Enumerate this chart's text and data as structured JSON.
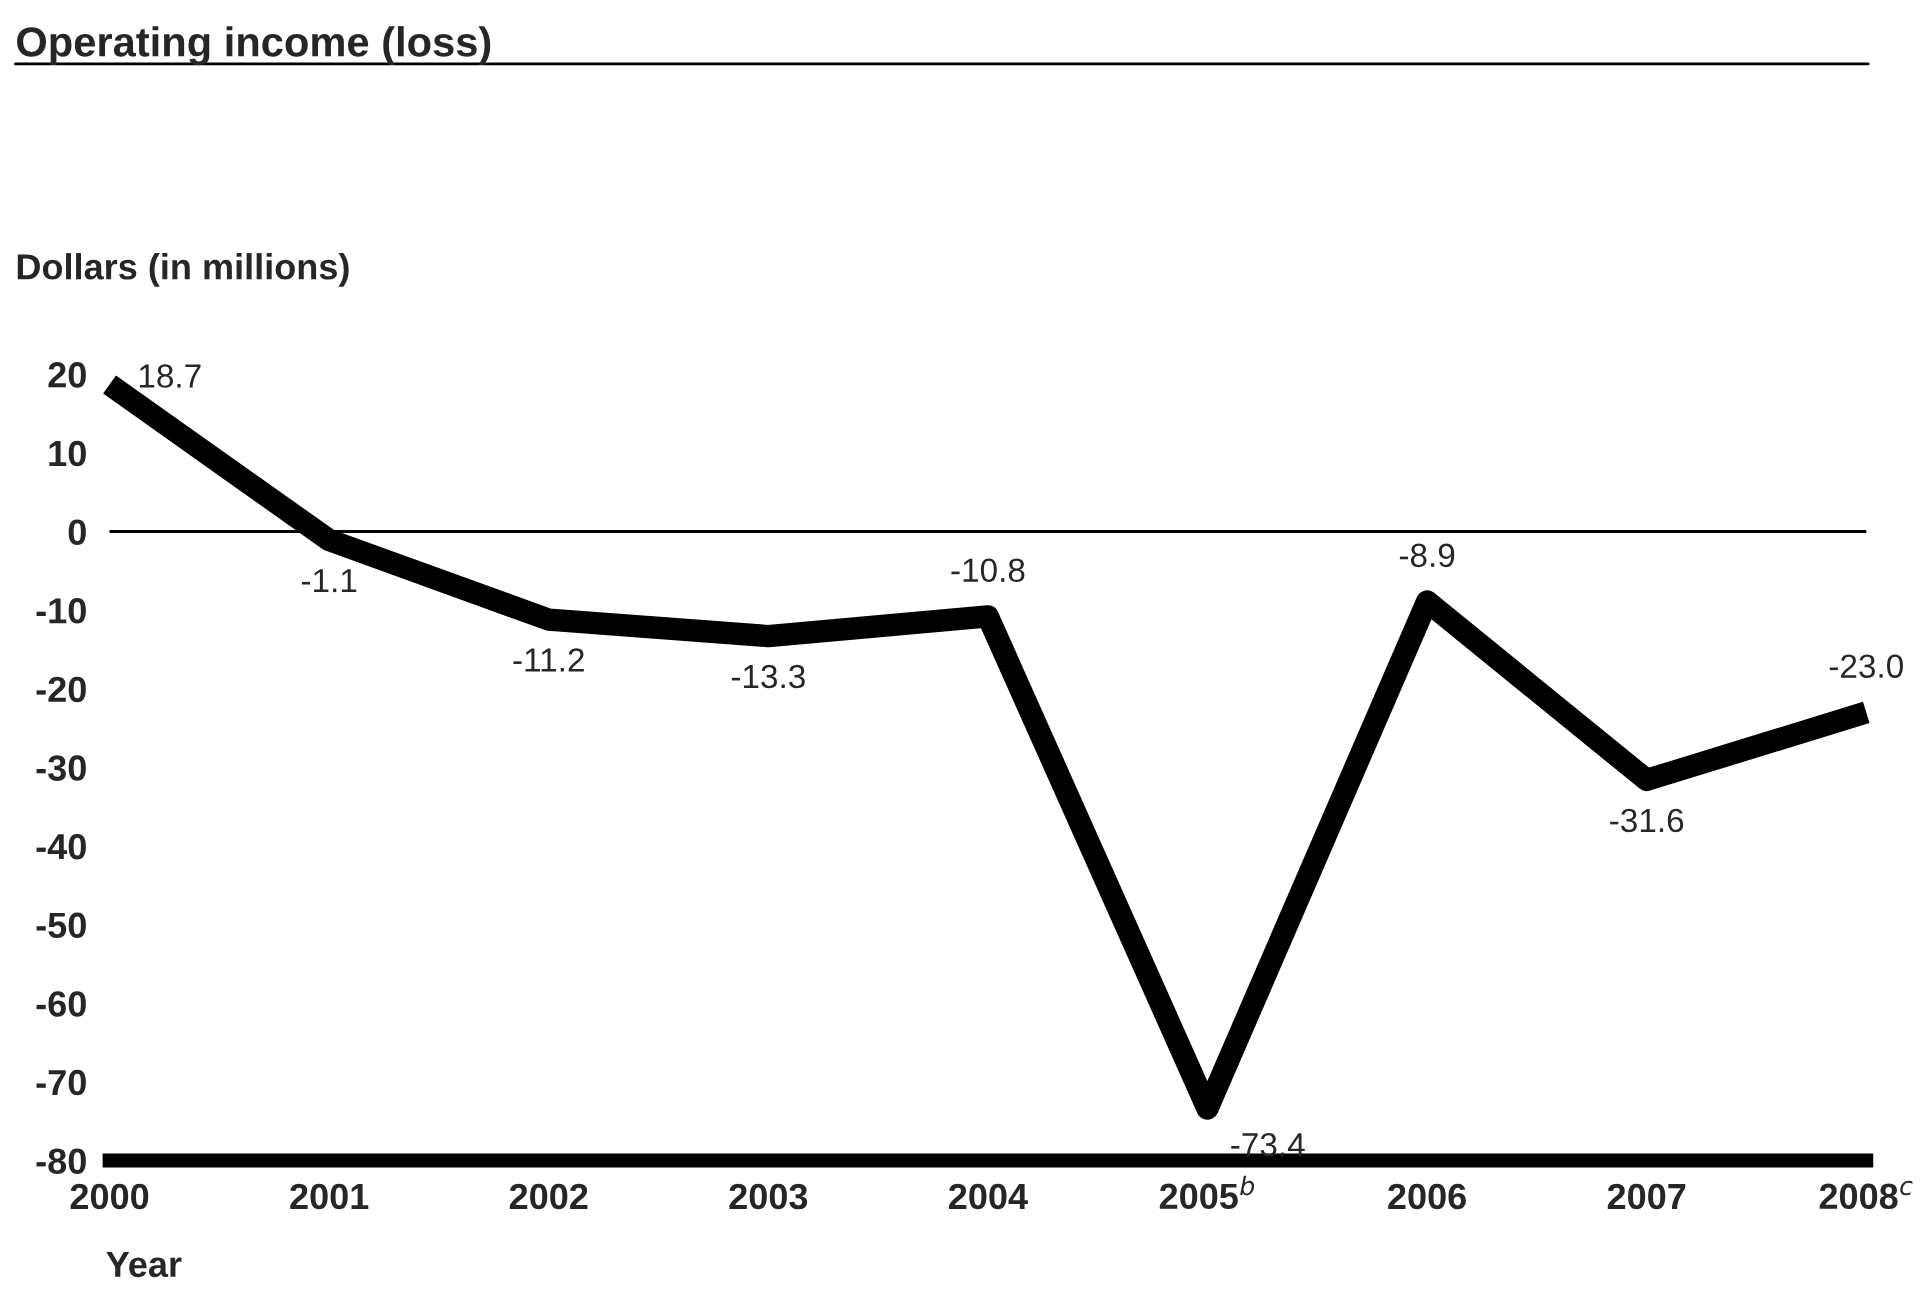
{
  "chart_data": {
    "type": "line",
    "title": "Operating income (loss)",
    "ylabel": "Dollars (in millions)",
    "xlabel": "Year",
    "categories": [
      "2000",
      "2001",
      "2002",
      "2003",
      "2004",
      "2005$^{b}$",
      "2006",
      "2007",
      "2008$^{c}$"
    ],
    "series": [
      {
        "color": "#000000",
        "values": [
          18.7,
          -1.1,
          -11.2,
          -13.3,
          -10.8,
          -73.4,
          -8.9,
          -31.6,
          -23.0
        ]
      }
    ],
    "value_labels": [
      "18.7",
      "-1.1",
      "-11.2",
      "-13.3",
      "-10.8",
      "-73.4",
      "-8.9",
      "-31.6",
      "-23.0"
    ],
    "ylim": [
      -80,
      20
    ],
    "yticks": [
      -80,
      -70,
      -60,
      -50,
      -40,
      -30,
      -20,
      -10,
      0,
      10,
      20
    ],
    "ref_lines": [
      {
        "axis": "y",
        "value": 0,
        "color": "#000000"
      }
    ],
    "grid": false,
    "legend": false,
    "marker": "none",
    "line_style": "solid"
  }
}
